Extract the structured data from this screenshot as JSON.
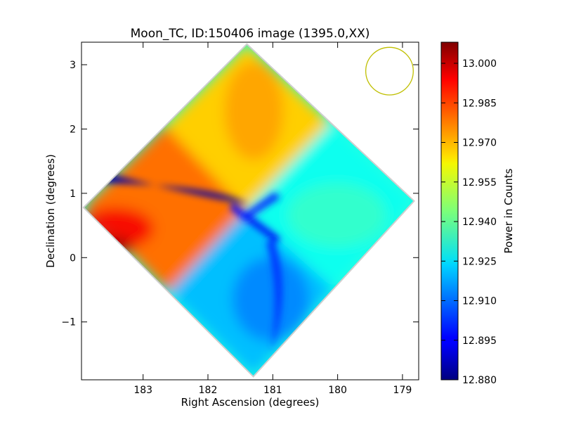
{
  "chart_data": {
    "type": "heatmap",
    "title": "Moon_TC, ID:150406 image (1395.0,XX)",
    "xlabel": "Right Ascension (degrees)",
    "ylabel": "Declination (degrees)",
    "xlim": [
      183.95,
      178.75
    ],
    "ylim": [
      -1.9,
      3.35
    ],
    "x_ticks": [
      {
        "value": 183,
        "label": "183"
      },
      {
        "value": 182,
        "label": "182"
      },
      {
        "value": 181,
        "label": "181"
      },
      {
        "value": 180,
        "label": "180"
      },
      {
        "value": 179,
        "label": "179"
      }
    ],
    "y_ticks": [
      {
        "value": -1,
        "label": "−1"
      },
      {
        "value": 0,
        "label": "0"
      },
      {
        "value": 1,
        "label": "1"
      },
      {
        "value": 2,
        "label": "2"
      },
      {
        "value": 3,
        "label": "3"
      }
    ],
    "colorbar": {
      "label": "Power in Counts",
      "colormap": "jet",
      "range": [
        12.88,
        13.008
      ],
      "ticks": [
        {
          "value": 12.88,
          "label": "12.880"
        },
        {
          "value": 12.895,
          "label": "12.895"
        },
        {
          "value": 12.91,
          "label": "12.910"
        },
        {
          "value": 12.925,
          "label": "12.925"
        },
        {
          "value": 12.94,
          "label": "12.940"
        },
        {
          "value": 12.955,
          "label": "12.955"
        },
        {
          "value": 12.97,
          "label": "12.970"
        },
        {
          "value": 12.985,
          "label": "12.985"
        },
        {
          "value": 13.0,
          "label": "13.000"
        }
      ]
    },
    "map_corners": {
      "north": {
        "ra": 181.4,
        "dec": 3.32
      },
      "east": {
        "ra": 183.92,
        "dec": 0.78
      },
      "south": {
        "ra": 181.3,
        "dec": -1.85
      },
      "west": {
        "ra": 178.82,
        "dec": 0.88
      }
    },
    "regions": [
      {
        "name": "north-lobe",
        "approx_value": 12.966
      },
      {
        "name": "east-lobe",
        "approx_value": 12.978
      },
      {
        "name": "south-lobe",
        "approx_value": 12.92
      },
      {
        "name": "west-lobe",
        "approx_value": 12.93
      },
      {
        "name": "northeast-dark-band",
        "approx_value": 12.885
      },
      {
        "name": "center-dark-cross",
        "approx_value": 12.895
      }
    ],
    "beam_marker": {
      "shape": "circle",
      "center_ra": 179.2,
      "center_dec": 2.9,
      "radius_deg": 0.37,
      "color": "#bfbf00"
    }
  }
}
